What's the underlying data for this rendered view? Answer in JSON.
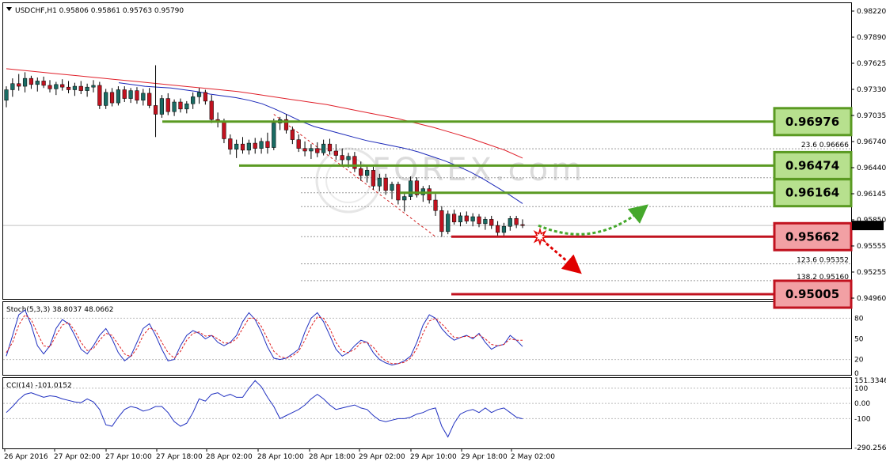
{
  "window": {
    "symbol_header": "USDCHF,H1  0.95806 0.95861 0.95763 0.95790",
    "current_price": "0.95790",
    "watermark": "FOREX.com"
  },
  "colors": {
    "bull": "#1a6b63",
    "bear": "#c1121f",
    "ma_red": "#e0202a",
    "ma_blue": "#1a27b8",
    "support_green": "#5a9a22",
    "resistance_red": "#c1121f",
    "green_box": "#b7e08e",
    "red_box": "#f2a0a4"
  },
  "chart_data": [
    {
      "type": "candlestick",
      "title": "USDCHF,H1",
      "ylim": [
        0.9496,
        0.9832
      ],
      "price_ticks": [
        "0.98220",
        "0.97890",
        "0.97625",
        "0.97330",
        "0.97035",
        "0.96740",
        "0.96440",
        "0.96145",
        "0.95850",
        "0.95555",
        "0.95255",
        "0.94960"
      ],
      "x_ticks": [
        "26 Apr 2016",
        "27 Apr 02:00",
        "27 Apr 10:00",
        "27 Apr 18:00",
        "28 Apr 02:00",
        "28 Apr 10:00",
        "28 Apr 18:00",
        "29 Apr 02:00",
        "29 Apr 10:00",
        "29 Apr 18:00",
        "2 May 02:00"
      ],
      "levels": [
        {
          "label": "0.96976",
          "value": 0.96976,
          "kind": "resistance"
        },
        {
          "label": "0.96474",
          "value": 0.96474,
          "kind": "resistance"
        },
        {
          "label": "0.96164",
          "value": 0.96164,
          "kind": "resistance"
        },
        {
          "label": "0.95662",
          "value": 0.95662,
          "kind": "support"
        },
        {
          "label": "0.95005",
          "value": 0.95005,
          "kind": "support"
        }
      ],
      "fib_labels": [
        {
          "text": "23.6  0.96666",
          "value": 0.96666
        },
        {
          "text": "123.6  0.95352",
          "value": 0.95352
        },
        {
          "text": "138.2  0.95160",
          "value": 0.9516
        }
      ],
      "fib_lines": [
        0.96666,
        0.96474,
        0.96335,
        0.96164,
        0.96005,
        0.95662,
        0.95352,
        0.9516
      ],
      "candles": [
        [
          0.9722,
          0.9738,
          0.9714,
          0.9734
        ],
        [
          0.9734,
          0.9747,
          0.9726,
          0.9741
        ],
        [
          0.9741,
          0.9752,
          0.9733,
          0.9738
        ],
        [
          0.9738,
          0.9754,
          0.9731,
          0.9747
        ],
        [
          0.9747,
          0.975,
          0.9735,
          0.974
        ],
        [
          0.974,
          0.9748,
          0.9732,
          0.9744
        ],
        [
          0.9744,
          0.9749,
          0.9736,
          0.9739
        ],
        [
          0.9739,
          0.9745,
          0.9731,
          0.9735
        ],
        [
          0.9735,
          0.9743,
          0.9728,
          0.974
        ],
        [
          0.974,
          0.9746,
          0.9733,
          0.9737
        ],
        [
          0.9737,
          0.9744,
          0.973,
          0.9734
        ],
        [
          0.9734,
          0.9742,
          0.9727,
          0.9738
        ],
        [
          0.9738,
          0.9744,
          0.9729,
          0.9733
        ],
        [
          0.9733,
          0.9741,
          0.9726,
          0.9737
        ],
        [
          0.9737,
          0.9745,
          0.9731,
          0.9739
        ],
        [
          0.9739,
          0.9743,
          0.9712,
          0.9716
        ],
        [
          0.9716,
          0.9735,
          0.9712,
          0.9731
        ],
        [
          0.9731,
          0.9736,
          0.9715,
          0.9719
        ],
        [
          0.9719,
          0.9738,
          0.9716,
          0.9734
        ],
        [
          0.9734,
          0.9738,
          0.972,
          0.9724
        ],
        [
          0.9724,
          0.9736,
          0.9719,
          0.9733
        ],
        [
          0.9733,
          0.9737,
          0.9718,
          0.9722
        ],
        [
          0.9722,
          0.9735,
          0.9716,
          0.973
        ],
        [
          0.973,
          0.9736,
          0.9713,
          0.9716
        ],
        [
          0.9716,
          0.9762,
          0.968,
          0.9706
        ],
        [
          0.9706,
          0.9728,
          0.9702,
          0.9724
        ],
        [
          0.9724,
          0.973,
          0.9705,
          0.9709
        ],
        [
          0.9709,
          0.9723,
          0.9704,
          0.972
        ],
        [
          0.972,
          0.9724,
          0.9708,
          0.9712
        ],
        [
          0.9712,
          0.9721,
          0.9707,
          0.9718
        ],
        [
          0.9718,
          0.9731,
          0.9712,
          0.9726
        ],
        [
          0.9726,
          0.9736,
          0.9718,
          0.9731
        ],
        [
          0.9731,
          0.9734,
          0.9717,
          0.9721
        ],
        [
          0.9721,
          0.9728,
          0.9696,
          0.97
        ],
        [
          0.97,
          0.9708,
          0.9691,
          0.9697
        ],
        [
          0.9697,
          0.9701,
          0.9673,
          0.9678
        ],
        [
          0.9678,
          0.9683,
          0.966,
          0.9666
        ],
        [
          0.9666,
          0.9677,
          0.9656,
          0.9672
        ],
        [
          0.9672,
          0.968,
          0.9661,
          0.9665
        ],
        [
          0.9665,
          0.9677,
          0.966,
          0.9673
        ],
        [
          0.9673,
          0.9679,
          0.9661,
          0.9667
        ],
        [
          0.9667,
          0.9679,
          0.9661,
          0.9675
        ],
        [
          0.9675,
          0.9685,
          0.9661,
          0.9668
        ],
        [
          0.9668,
          0.9701,
          0.9665,
          0.9696
        ],
        [
          0.9696,
          0.9703,
          0.9688,
          0.97
        ],
        [
          0.97,
          0.9706,
          0.9684,
          0.9688
        ],
        [
          0.9688,
          0.9692,
          0.9672,
          0.9677
        ],
        [
          0.9677,
          0.9683,
          0.9663,
          0.9667
        ],
        [
          0.9667,
          0.9675,
          0.9658,
          0.9664
        ],
        [
          0.9664,
          0.9672,
          0.9655,
          0.9667
        ],
        [
          0.9667,
          0.9674,
          0.9657,
          0.9662
        ],
        [
          0.9662,
          0.9677,
          0.9659,
          0.9672
        ],
        [
          0.9672,
          0.9678,
          0.966,
          0.9664
        ],
        [
          0.9664,
          0.9672,
          0.9654,
          0.9659
        ],
        [
          0.9659,
          0.9667,
          0.9648,
          0.9654
        ],
        [
          0.9654,
          0.9662,
          0.9645,
          0.9658
        ],
        [
          0.9658,
          0.9663,
          0.964,
          0.9644
        ],
        [
          0.9644,
          0.9652,
          0.963,
          0.9636
        ],
        [
          0.9636,
          0.9648,
          0.9628,
          0.9642
        ],
        [
          0.9642,
          0.9646,
          0.962,
          0.9624
        ],
        [
          0.9624,
          0.9638,
          0.9618,
          0.9633
        ],
        [
          0.9633,
          0.9638,
          0.9614,
          0.9619
        ],
        [
          0.9619,
          0.9629,
          0.9609,
          0.9626
        ],
        [
          0.9626,
          0.9629,
          0.9603,
          0.9608
        ],
        [
          0.9608,
          0.9615,
          0.9595,
          0.9612
        ],
        [
          0.9612,
          0.9635,
          0.9608,
          0.963
        ],
        [
          0.963,
          0.9634,
          0.9611,
          0.9614
        ],
        [
          0.9614,
          0.9624,
          0.9606,
          0.9621
        ],
        [
          0.9621,
          0.9625,
          0.9604,
          0.9608
        ],
        [
          0.9608,
          0.9615,
          0.959,
          0.9596
        ],
        [
          0.9596,
          0.9601,
          0.9566,
          0.9572
        ],
        [
          0.9572,
          0.9596,
          0.9569,
          0.9592
        ],
        [
          0.9592,
          0.9597,
          0.958,
          0.9583
        ],
        [
          0.9583,
          0.9594,
          0.9578,
          0.959
        ],
        [
          0.959,
          0.9595,
          0.9581,
          0.9584
        ],
        [
          0.9584,
          0.9593,
          0.9578,
          0.9589
        ],
        [
          0.9589,
          0.9592,
          0.9577,
          0.9581
        ],
        [
          0.9581,
          0.9589,
          0.9574,
          0.9586
        ],
        [
          0.9586,
          0.959,
          0.9575,
          0.9579
        ],
        [
          0.9579,
          0.9584,
          0.9567,
          0.9571
        ],
        [
          0.9571,
          0.9582,
          0.9566,
          0.9578
        ],
        [
          0.9578,
          0.959,
          0.9573,
          0.9587
        ],
        [
          0.9587,
          0.959,
          0.9576,
          0.958
        ],
        [
          0.958,
          0.9586,
          0.9576,
          0.9579
        ]
      ],
      "ma_red": [
        0.9758,
        0.9756,
        0.9754,
        0.9752,
        0.975,
        0.9748,
        0.9746,
        0.9744,
        0.9742,
        0.974,
        0.9738,
        0.9736,
        0.9734,
        0.9732,
        0.9729,
        0.9726,
        0.9723,
        0.972,
        0.9717,
        0.9713,
        0.9709,
        0.9705,
        0.9701,
        0.9696,
        0.9691,
        0.9685,
        0.9679,
        0.9672,
        0.9665,
        0.9656
      ],
      "ma_blue": [
        0.9742,
        0.974,
        0.9738,
        0.9737,
        0.9736,
        0.9734,
        0.9732,
        0.9729,
        0.9727,
        0.9725,
        0.9722,
        0.9718,
        0.9712,
        0.9705,
        0.9698,
        0.9692,
        0.9688,
        0.9684,
        0.968,
        0.9676,
        0.9673,
        0.967,
        0.9667,
        0.9663,
        0.9658,
        0.9653,
        0.9647,
        0.964,
        0.9632,
        0.9623,
        0.9614,
        0.9604
      ],
      "arrows": [
        {
          "kind": "bullish",
          "from": 0.9579,
          "to": 0.9598
        },
        {
          "kind": "bearish",
          "from": 0.9562,
          "to": 0.9529
        }
      ]
    },
    {
      "type": "line",
      "title": "Stoch(5,3,3) 38.8037 48.0662",
      "ylim": [
        0,
        100
      ],
      "y_ticks": [
        "80",
        "50",
        "20",
        "0"
      ],
      "series": [
        {
          "values": [
            25,
            55,
            85,
            92,
            70,
            40,
            28,
            40,
            65,
            78,
            72,
            55,
            35,
            28,
            40,
            55,
            65,
            50,
            30,
            18,
            25,
            45,
            65,
            72,
            55,
            35,
            18,
            20,
            40,
            55,
            62,
            58,
            50,
            55,
            45,
            40,
            45,
            55,
            75,
            88,
            78,
            60,
            38,
            22,
            20,
            22,
            28,
            35,
            60,
            80,
            88,
            75,
            55,
            35,
            25,
            30,
            40,
            48,
            45,
            30,
            20,
            15,
            12,
            14,
            18,
            25,
            45,
            70,
            85,
            80,
            65,
            55,
            48,
            52,
            55,
            50,
            58,
            45,
            35,
            40,
            42,
            55,
            48,
            38.8
          ]
        },
        {
          "values": [
            30,
            45,
            70,
            85,
            78,
            58,
            40,
            38,
            55,
            70,
            74,
            62,
            45,
            33,
            36,
            48,
            58,
            55,
            42,
            28,
            24,
            36,
            55,
            66,
            62,
            45,
            30,
            22,
            32,
            48,
            58,
            60,
            54,
            55,
            50,
            44,
            44,
            50,
            65,
            80,
            80,
            68,
            50,
            32,
            24,
            22,
            25,
            32,
            48,
            68,
            82,
            80,
            65,
            45,
            32,
            30,
            35,
            44,
            45,
            38,
            26,
            18,
            14,
            14,
            16,
            22,
            36,
            58,
            76,
            80,
            72,
            62,
            52,
            52,
            54,
            52,
            56,
            50,
            42,
            40,
            42,
            50,
            48,
            48.1
          ]
        }
      ]
    },
    {
      "type": "line",
      "title": "CCI(14) -101.0152",
      "ylim": [
        -290.2563,
        151.3346
      ],
      "y_ticks": [
        "151.3346",
        "100",
        "0.00",
        "-100",
        "-290.2563"
      ],
      "series": [
        {
          "values": [
            -60,
            -20,
            25,
            60,
            70,
            55,
            40,
            50,
            45,
            30,
            20,
            10,
            5,
            30,
            10,
            -40,
            -140,
            -150,
            -90,
            -40,
            -20,
            -30,
            -50,
            -40,
            -20,
            -20,
            -60,
            -120,
            -150,
            -130,
            -60,
            30,
            15,
            60,
            70,
            45,
            60,
            40,
            40,
            100,
            150,
            110,
            40,
            -20,
            -100,
            -80,
            -60,
            -40,
            -10,
            30,
            60,
            30,
            -10,
            -40,
            -30,
            -20,
            -10,
            -30,
            -40,
            -80,
            -110,
            -120,
            -110,
            -100,
            -100,
            -90,
            -70,
            -60,
            -40,
            -30,
            -150,
            -220,
            -130,
            -70,
            -50,
            -40,
            -60,
            -30,
            -60,
            -40,
            -30,
            -60,
            -90,
            -101
          ]
        }
      ]
    }
  ]
}
